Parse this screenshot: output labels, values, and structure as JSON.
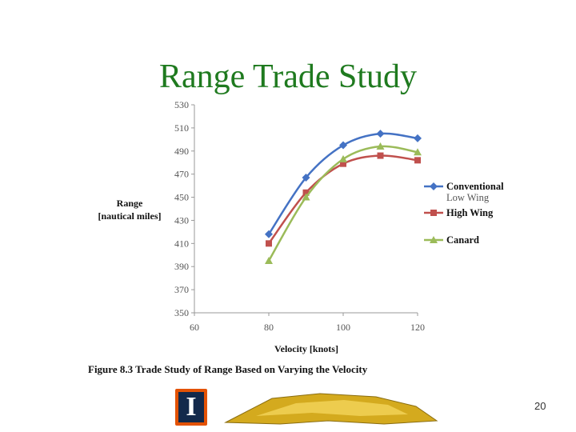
{
  "slide": {
    "title": "Range Trade Study",
    "caption": "Figure 8.3 Trade Study of Range Based on Varying the Velocity",
    "page_number": "20",
    "logo_letter": "I"
  },
  "colors": {
    "title": "#1f7a1f",
    "conventional": "#4472c4",
    "high_wing": "#c0504d",
    "canard": "#9bbb59",
    "logo_orange": "#e35205",
    "logo_navy": "#13294b",
    "banner_gold": "#d4aa1e"
  },
  "chart_data": {
    "type": "line",
    "xlabel": "Velocity [knots]",
    "ylabel_lines": [
      "Range",
      "[nautical miles]"
    ],
    "xlim": [
      60,
      120
    ],
    "ylim": [
      350,
      530
    ],
    "xticks": [
      60,
      80,
      100,
      120
    ],
    "yticks": [
      350,
      370,
      390,
      410,
      430,
      450,
      470,
      490,
      510,
      530
    ],
    "x": [
      80,
      90,
      100,
      110,
      120
    ],
    "series": [
      {
        "name": "Conventional Low Wing",
        "name_lines": [
          "Conventional",
          "Low Wing"
        ],
        "marker": "diamond",
        "color": "#4472c4",
        "values": [
          418,
          467,
          495,
          505,
          501
        ]
      },
      {
        "name": "High Wing",
        "name_lines": [
          "High Wing"
        ],
        "marker": "square",
        "color": "#c0504d",
        "values": [
          410,
          454,
          479,
          486,
          482
        ]
      },
      {
        "name": "Canard",
        "name_lines": [
          "Canard"
        ],
        "marker": "triangle",
        "color": "#9bbb59",
        "values": [
          395,
          450,
          483,
          494,
          489
        ]
      }
    ],
    "grid": false,
    "legend_position": "right"
  }
}
